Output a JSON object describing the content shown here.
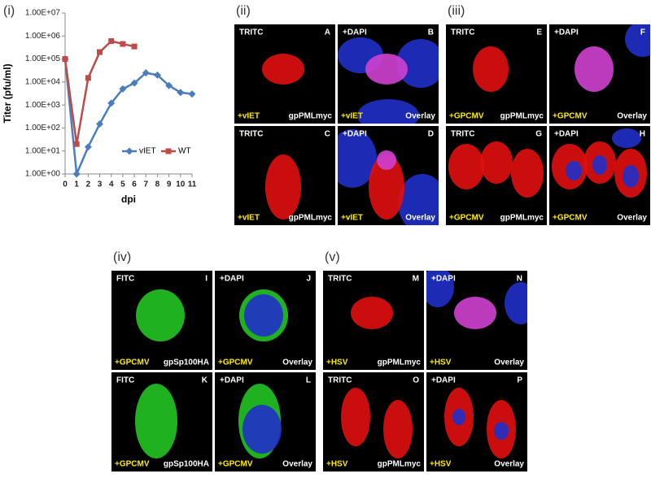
{
  "chart_data": {
    "type": "line",
    "label": "(i)",
    "x_label": "dpi",
    "y_label": "Titer (pfu/ml)",
    "x": [
      0,
      1,
      2,
      3,
      4,
      5,
      6,
      7,
      8,
      9,
      10,
      11
    ],
    "series": [
      {
        "name": "vIET",
        "color": "#4a7ebb",
        "marker": "diamond",
        "values": [
          100000,
          1,
          15,
          150,
          1200,
          5000,
          9000,
          25000,
          20000,
          7000,
          3500,
          3000
        ]
      },
      {
        "name": "WT",
        "color": "#be4b48",
        "marker": "square",
        "values": [
          100000,
          20,
          15000,
          200000,
          600000,
          450000,
          350000,
          null,
          null,
          null,
          null,
          null
        ]
      }
    ],
    "xlim": [
      0,
      11
    ],
    "xticks": [
      0,
      1,
      2,
      3,
      4,
      5,
      6,
      7,
      8,
      9,
      10,
      11
    ],
    "ylim": [
      1,
      10000000
    ],
    "log_y": true,
    "yticks": [
      {
        "value": 1,
        "label": "1.00E+00"
      },
      {
        "value": 10,
        "label": "1.00E+01"
      },
      {
        "value": 100,
        "label": "1.00E+02"
      },
      {
        "value": 1000,
        "label": "1.00E+03"
      },
      {
        "value": 10000,
        "label": "1.00E+04"
      },
      {
        "value": 100000,
        "label": "1.00E+05"
      },
      {
        "value": 1000000,
        "label": "1.00E+06"
      },
      {
        "value": 10000000,
        "label": "1.00E+07"
      }
    ],
    "grid": false,
    "legend": "lower-right"
  },
  "panels": [
    {
      "label": "(ii)",
      "cells": [
        {
          "channel": "TRITC",
          "letter": "A",
          "treatment": "+vIET",
          "caption": "gpPMLmyc"
        },
        {
          "channel": "+DAPI",
          "letter": "B",
          "treatment": "+vIET",
          "caption": "Overlay"
        },
        {
          "channel": "TRITC",
          "letter": "C",
          "treatment": "+vIET",
          "caption": "gpPMLmyc"
        },
        {
          "channel": "+DAPI",
          "letter": "D",
          "treatment": "+vIET",
          "caption": "Overlay"
        }
      ]
    },
    {
      "label": "(iii)",
      "cells": [
        {
          "channel": "TRITC",
          "letter": "E",
          "treatment": "+GPCMV",
          "caption": "gpPMLmyc"
        },
        {
          "channel": "+DAPI",
          "letter": "F",
          "treatment": "+GPCMV",
          "caption": "Overlay"
        },
        {
          "channel": "TRITC",
          "letter": "G",
          "treatment": "+GPCMV",
          "caption": "gpPMLmyc"
        },
        {
          "channel": "+DAPI",
          "letter": "H",
          "treatment": "+GPCMV",
          "caption": "Overlay"
        }
      ]
    },
    {
      "label": "(iv)",
      "cells": [
        {
          "channel": "FITC",
          "letter": "I",
          "treatment": "+GPCMV",
          "caption": "gpSp100HA"
        },
        {
          "channel": "+DAPI",
          "letter": "J",
          "treatment": "+GPCMV",
          "caption": "Overlay"
        },
        {
          "channel": "FITC",
          "letter": "K",
          "treatment": "+GPCMV",
          "caption": "gpSp100HA"
        },
        {
          "channel": "+DAPI",
          "letter": "L",
          "treatment": "+GPCMV",
          "caption": "Overlay"
        }
      ]
    },
    {
      "label": "(v)",
      "cells": [
        {
          "channel": "TRITC",
          "letter": "M",
          "treatment": "+HSV",
          "caption": "gpPMLmyc"
        },
        {
          "channel": "+DAPI",
          "letter": "N",
          "treatment": "+HSV",
          "caption": "Overlay"
        },
        {
          "channel": "TRITC",
          "letter": "O",
          "treatment": "+HSV",
          "caption": "gpPMLmyc"
        },
        {
          "channel": "+DAPI",
          "letter": "P",
          "treatment": "+HSV",
          "caption": "Overlay"
        }
      ]
    }
  ]
}
